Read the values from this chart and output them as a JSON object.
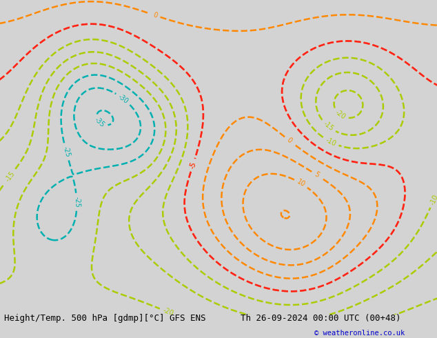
{
  "title_left": "Height/Temp. 500 hPa [gdmp][°C] GFS ENS",
  "title_right": "Th 26-09-2024 00:00 UTC (00+48)",
  "copyright": "© weatheronline.co.uk",
  "bg_color": "#d3d3d3",
  "land_color": "#b5e0b5",
  "ocean_color": "#d3d3d3",
  "coast_color": "#808080",
  "border_color": "#808080",
  "height_contour_color": "#000000",
  "temp_orange_color": "#ff8800",
  "temp_cyan_color": "#00b0b0",
  "temp_green_color": "#88cc00",
  "temp_red_color": "#ff2020",
  "font_size_title": 9,
  "figsize": [
    6.34,
    4.9
  ],
  "dpi": 100,
  "extent": [
    -170,
    -50,
    15,
    75
  ]
}
